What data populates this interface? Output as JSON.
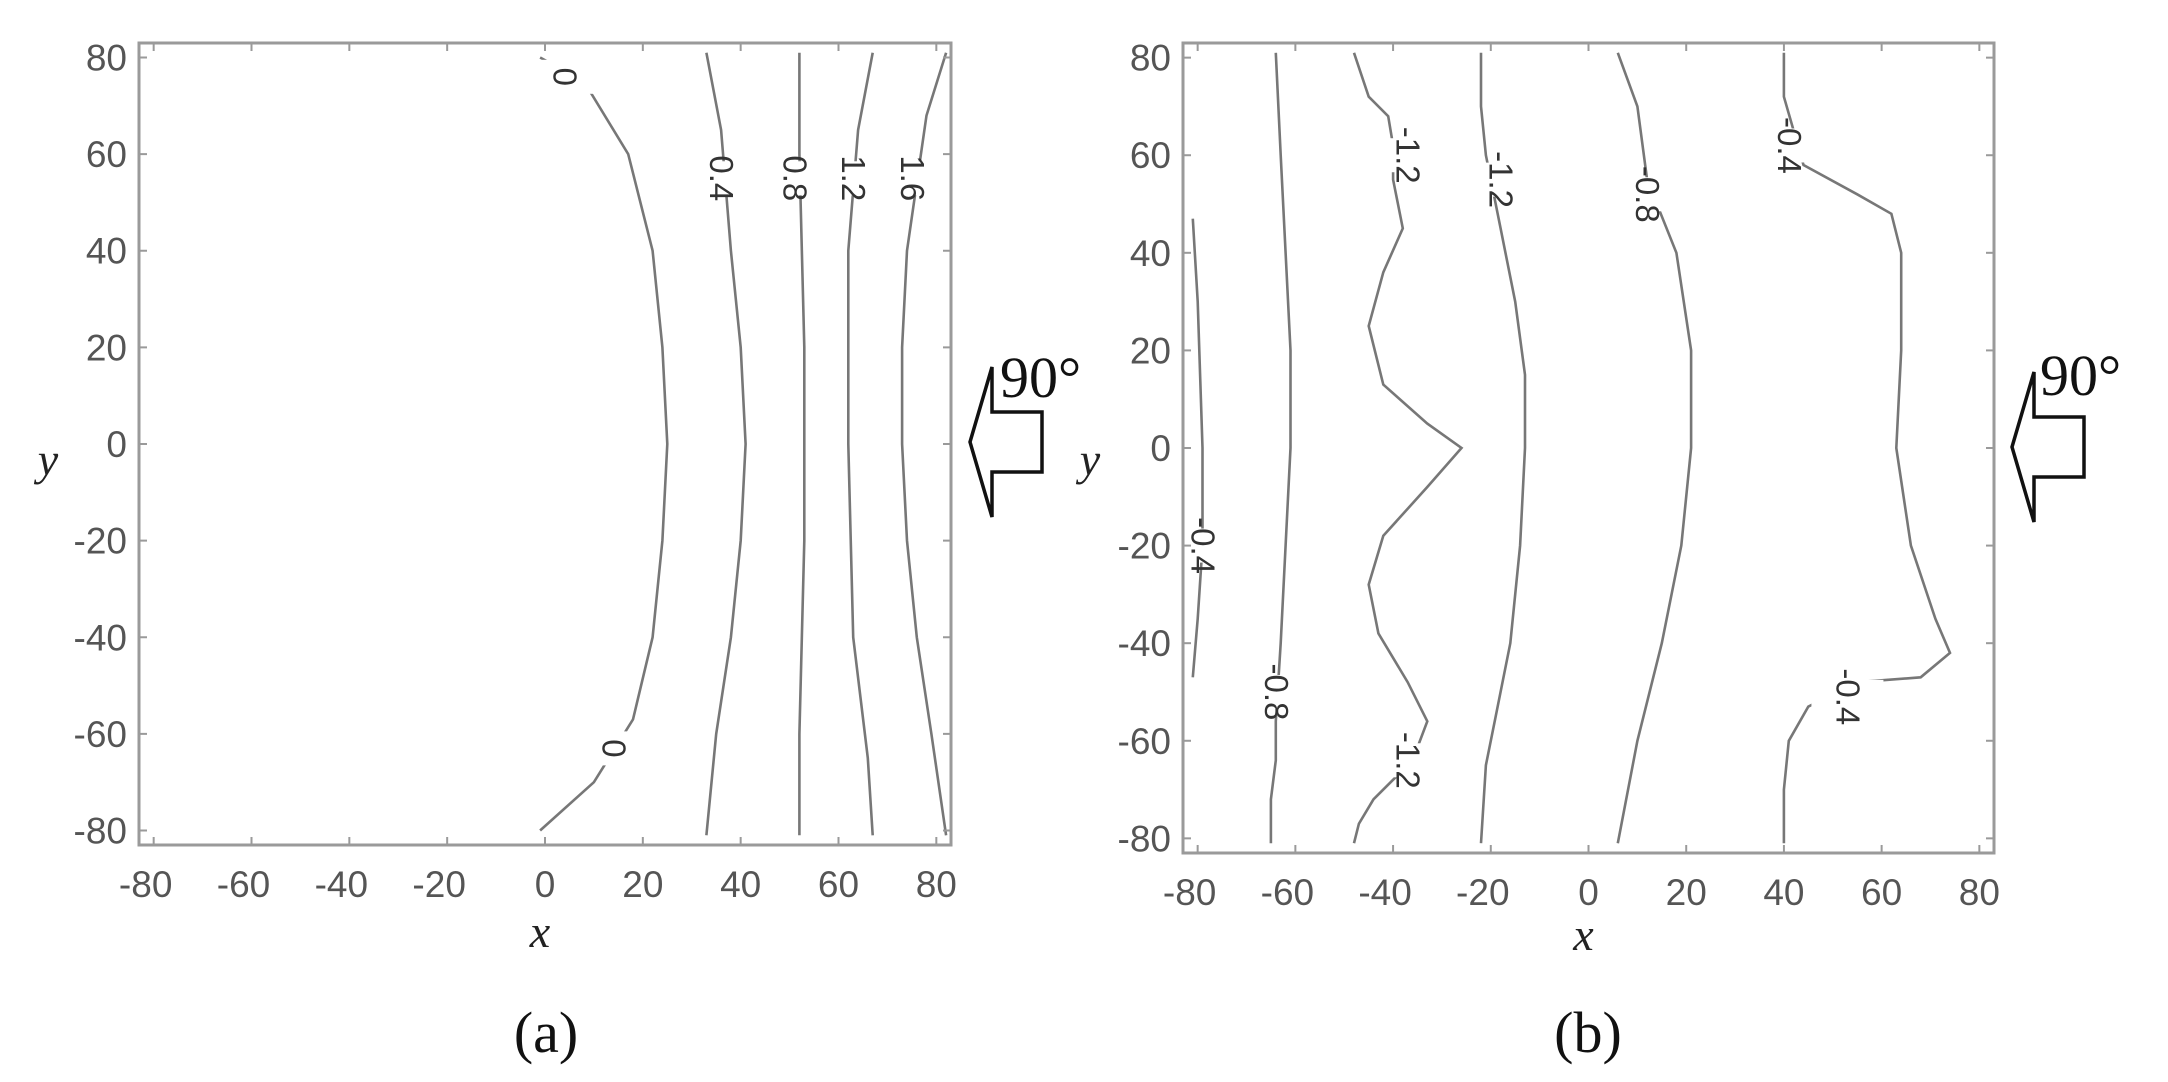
{
  "chart_data": [
    {
      "type": "contour",
      "caption": "(a)",
      "xlabel": "x",
      "ylabel": "y",
      "xlim": [
        -83,
        83
      ],
      "ylim": [
        -83,
        83
      ],
      "xticks": [
        "-80",
        "-60",
        "-40",
        "-20",
        "0",
        "20",
        "40",
        "60",
        "80"
      ],
      "yticks": [
        "80",
        "60",
        "40",
        "20",
        "0",
        "-20",
        "-40",
        "-60",
        "-80"
      ],
      "direction_label": "90°",
      "contours": [
        {
          "level": "0",
          "points": [
            [
              -1,
              80
            ],
            [
              8,
              75
            ],
            [
              17,
              60
            ],
            [
              22,
              40
            ],
            [
              24,
              20
            ],
            [
              25,
              0
            ],
            [
              24,
              -20
            ],
            [
              22,
              -40
            ],
            [
              18,
              -57
            ],
            [
              10,
              -70
            ],
            [
              -1,
              -80
            ]
          ],
          "labels": [
            {
              "text": "0",
              "at": [
                4,
                76
              ]
            },
            {
              "text": "0",
              "at": [
                14,
                -63
              ]
            }
          ]
        },
        {
          "level": "0.4",
          "points": [
            [
              33,
              81
            ],
            [
              36,
              65
            ],
            [
              38,
              40
            ],
            [
              40,
              20
            ],
            [
              41,
              0
            ],
            [
              40,
              -20
            ],
            [
              38,
              -40
            ],
            [
              35,
              -60
            ],
            [
              33,
              -81
            ]
          ],
          "labels": [
            {
              "text": "0.4",
              "at": [
                36,
                55
              ]
            }
          ]
        },
        {
          "level": "0.8",
          "points": [
            [
              52,
              81
            ],
            [
              52,
              60
            ],
            [
              53,
              20
            ],
            [
              53,
              0
            ],
            [
              53,
              -20
            ],
            [
              52,
              -60
            ],
            [
              52,
              -81
            ]
          ],
          "labels": [
            {
              "text": "0.8",
              "at": [
                51,
                55
              ]
            }
          ]
        },
        {
          "level": "1.2",
          "points": [
            [
              67,
              81
            ],
            [
              64,
              65
            ],
            [
              62,
              40
            ],
            [
              62,
              0
            ],
            [
              63,
              -40
            ],
            [
              66,
              -65
            ],
            [
              67,
              -81
            ]
          ],
          "labels": [
            {
              "text": "1.2",
              "at": [
                63,
                55
              ]
            }
          ]
        },
        {
          "level": "1.6",
          "points": [
            [
              82,
              81
            ],
            [
              78,
              68
            ],
            [
              74,
              40
            ],
            [
              73,
              20
            ],
            [
              73,
              0
            ],
            [
              74,
              -20
            ],
            [
              76,
              -40
            ],
            [
              79,
              -60
            ],
            [
              82,
              -81
            ]
          ],
          "labels": [
            {
              "text": "1.6",
              "at": [
                75,
                55
              ]
            }
          ]
        }
      ]
    },
    {
      "type": "contour",
      "caption": "(b)",
      "xlabel": "x",
      "ylabel": "y",
      "xlim": [
        -83,
        83
      ],
      "ylim": [
        -83,
        83
      ],
      "xticks": [
        "-80",
        "-60",
        "-40",
        "-20",
        "0",
        "20",
        "40",
        "60",
        "80"
      ],
      "yticks": [
        "80",
        "60",
        "40",
        "20",
        "0",
        "-20",
        "-40",
        "-60",
        "-80"
      ],
      "direction_label": "90°",
      "contours": [
        {
          "level": "-0.4",
          "points": [
            [
              -81,
              47
            ],
            [
              -80,
              30
            ],
            [
              -79,
              0
            ],
            [
              -79,
              -20
            ],
            [
              -80,
              -35
            ],
            [
              -81,
              -47
            ]
          ],
          "labels": [
            {
              "text": "-0.4",
              "at": [
                -79,
                -20
              ]
            }
          ]
        },
        {
          "level": "-0.8",
          "points": [
            [
              -64,
              81
            ],
            [
              -63,
              60
            ],
            [
              -62,
              40
            ],
            [
              -61,
              20
            ],
            [
              -61,
              0
            ],
            [
              -62,
              -20
            ],
            [
              -63,
              -40
            ],
            [
              -64,
              -56
            ],
            [
              -64,
              -64
            ],
            [
              -65,
              -72
            ],
            [
              -65,
              -81
            ]
          ],
          "labels": [
            {
              "text": "-0.8",
              "at": [
                -64,
                -50
              ]
            }
          ]
        },
        {
          "level": "-1.2",
          "points": [
            [
              -48,
              81
            ],
            [
              -45,
              72
            ],
            [
              -41,
              68
            ],
            [
              -40,
              62
            ],
            [
              -40,
              55
            ],
            [
              -38,
              45
            ],
            [
              -42,
              36
            ],
            [
              -45,
              25
            ],
            [
              -42,
              13
            ],
            [
              -33,
              5
            ],
            [
              -26,
              0
            ],
            [
              -33,
              -8
            ],
            [
              -42,
              -18
            ],
            [
              -45,
              -28
            ],
            [
              -43,
              -38
            ],
            [
              -37,
              -48
            ],
            [
              -33,
              -56
            ],
            [
              -36,
              -64
            ],
            [
              -44,
              -72
            ],
            [
              -47,
              -77
            ],
            [
              -48,
              -81
            ]
          ],
          "labels": [
            {
              "text": "-1.2",
              "at": [
                -37,
                60
              ]
            },
            {
              "text": "-1.2",
              "at": [
                -37,
                -64
              ]
            }
          ]
        },
        {
          "level": "-1.2",
          "points": [
            [
              -22,
              81
            ],
            [
              -22,
              70
            ],
            [
              -21,
              60
            ],
            [
              -18,
              45
            ],
            [
              -15,
              30
            ],
            [
              -13,
              15
            ],
            [
              -13,
              0
            ],
            [
              -14,
              -20
            ],
            [
              -16,
              -40
            ],
            [
              -19,
              -55
            ],
            [
              -21,
              -65
            ],
            [
              -22,
              -81
            ]
          ],
          "labels": [
            {
              "text": "-1.2",
              "at": [
                -18,
                55
              ]
            }
          ]
        },
        {
          "level": "-0.8",
          "points": [
            [
              6,
              81
            ],
            [
              10,
              70
            ],
            [
              12,
              55
            ],
            [
              18,
              40
            ],
            [
              21,
              20
            ],
            [
              21,
              0
            ],
            [
              19,
              -20
            ],
            [
              15,
              -40
            ],
            [
              10,
              -60
            ],
            [
              6,
              -81
            ]
          ],
          "labels": [
            {
              "text": "-0.8",
              "at": [
                12,
                52
              ]
            }
          ]
        },
        {
          "level": "-0.4",
          "points": [
            [
              40,
              81
            ],
            [
              40,
              72
            ],
            [
              44,
              58
            ],
            [
              55,
              52
            ],
            [
              62,
              48
            ],
            [
              64,
              40
            ],
            [
              64,
              20
            ],
            [
              63,
              0
            ],
            [
              66,
              -20
            ],
            [
              71,
              -35
            ],
            [
              74,
              -42
            ],
            [
              68,
              -47
            ],
            [
              55,
              -48
            ],
            [
              45,
              -53
            ],
            [
              41,
              -60
            ],
            [
              40,
              -70
            ],
            [
              40,
              -81
            ]
          ],
          "labels": [
            {
              "text": "-0.4",
              "at": [
                41,
                62
              ]
            },
            {
              "text": "-0.4",
              "at": [
                53,
                -51
              ]
            }
          ]
        }
      ]
    }
  ]
}
